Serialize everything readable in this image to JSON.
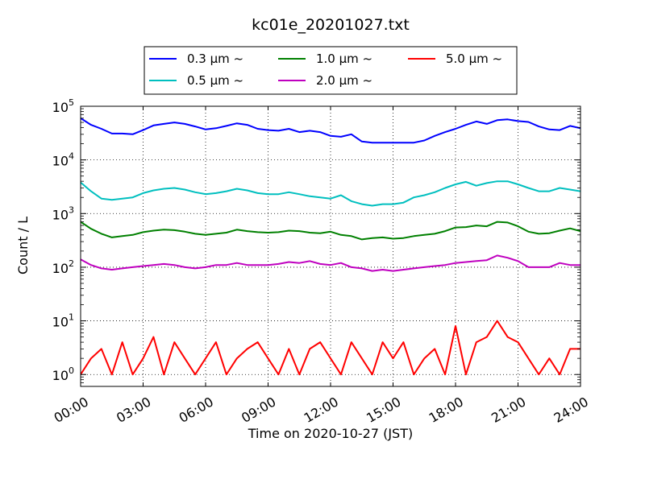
{
  "chart_data": {
    "type": "line",
    "title": "kc01e_20201027.txt",
    "xlabel": "Time on 2020-10-27 (JST)",
    "ylabel": "Count / L",
    "xlim": [
      "00:00",
      "24:00"
    ],
    "yscale": "log",
    "ylim": [
      0.6,
      100000
    ],
    "grid": true,
    "legend_position": "top-center, outside plot",
    "x_ticks": [
      "00:00",
      "03:00",
      "06:00",
      "09:00",
      "12:00",
      "15:00",
      "18:00",
      "21:00",
      "24:00"
    ],
    "y_ticks": [
      {
        "value": 1,
        "base": "10",
        "exp": "0"
      },
      {
        "value": 10,
        "base": "10",
        "exp": "1"
      },
      {
        "value": 100,
        "base": "10",
        "exp": "2"
      },
      {
        "value": 1000,
        "base": "10",
        "exp": "3"
      },
      {
        "value": 10000,
        "base": "10",
        "exp": "4"
      },
      {
        "value": 100000,
        "base": "10",
        "exp": "5"
      }
    ],
    "x_hours": [
      0,
      0.5,
      1,
      1.5,
      2,
      2.5,
      3,
      3.5,
      4,
      4.5,
      5,
      5.5,
      6,
      6.5,
      7,
      7.5,
      8,
      8.5,
      9,
      9.5,
      10,
      10.5,
      11,
      11.5,
      12,
      12.5,
      13,
      13.5,
      14,
      14.5,
      15,
      15.5,
      16,
      16.5,
      17,
      17.5,
      18,
      18.5,
      19,
      19.5,
      20,
      20.5,
      21,
      21.5,
      22,
      22.5,
      23,
      23.5,
      24
    ],
    "series": [
      {
        "name": "0.3 μm  ~",
        "color": "#0000ff",
        "values": [
          60000,
          45000,
          38000,
          31000,
          31000,
          30000,
          36000,
          44000,
          47000,
          50000,
          47000,
          42000,
          37000,
          39000,
          43000,
          48000,
          45000,
          38000,
          36000,
          35000,
          38000,
          33000,
          35000,
          33000,
          28000,
          27000,
          30000,
          22000,
          21000,
          21000,
          21000,
          21000,
          21000,
          23000,
          28000,
          33000,
          38000,
          45000,
          52000,
          47000,
          55000,
          57000,
          53000,
          51000,
          42000,
          37000,
          36000,
          43000,
          39000
        ]
      },
      {
        "name": "0.5 μm  ~",
        "color": "#00bfbf",
        "values": [
          3800,
          2600,
          1900,
          1800,
          1900,
          2000,
          2400,
          2700,
          2900,
          3000,
          2800,
          2500,
          2300,
          2400,
          2600,
          2900,
          2700,
          2400,
          2300,
          2300,
          2500,
          2300,
          2100,
          2000,
          1900,
          2200,
          1700,
          1500,
          1400,
          1500,
          1500,
          1600,
          2000,
          2200,
          2500,
          3000,
          3500,
          3900,
          3300,
          3700,
          4000,
          4000,
          3500,
          3000,
          2600,
          2600,
          3000,
          2800,
          2600
        ]
      },
      {
        "name": "1.0 μm  ~",
        "color": "#008000",
        "values": [
          700,
          520,
          420,
          360,
          380,
          400,
          450,
          480,
          500,
          490,
          460,
          420,
          400,
          420,
          440,
          500,
          470,
          450,
          440,
          450,
          480,
          470,
          440,
          430,
          460,
          400,
          380,
          330,
          350,
          360,
          340,
          350,
          380,
          400,
          420,
          470,
          550,
          560,
          600,
          580,
          700,
          680,
          580,
          460,
          420,
          430,
          480,
          530,
          470
        ]
      },
      {
        "name": "2.0 μm  ~",
        "color": "#bf00bf",
        "values": [
          140,
          110,
          95,
          90,
          95,
          100,
          105,
          110,
          115,
          110,
          100,
          95,
          100,
          110,
          110,
          120,
          110,
          110,
          110,
          115,
          125,
          120,
          130,
          115,
          110,
          120,
          100,
          95,
          85,
          90,
          85,
          90,
          95,
          100,
          105,
          110,
          120,
          125,
          130,
          135,
          165,
          150,
          130,
          100,
          100,
          100,
          120,
          110,
          110
        ]
      },
      {
        "name": "5.0 μm  ~",
        "color": "#ff0000",
        "values": [
          1,
          2,
          3,
          1,
          4,
          1,
          2,
          5,
          1,
          4,
          2,
          1,
          2,
          4,
          1,
          2,
          3,
          4,
          2,
          1,
          3,
          1,
          3,
          4,
          2,
          1,
          4,
          2,
          1,
          4,
          2,
          4,
          1,
          2,
          3,
          1,
          8,
          1,
          4,
          5,
          10,
          5,
          4,
          2,
          1,
          2,
          1,
          3,
          3
        ]
      }
    ]
  }
}
